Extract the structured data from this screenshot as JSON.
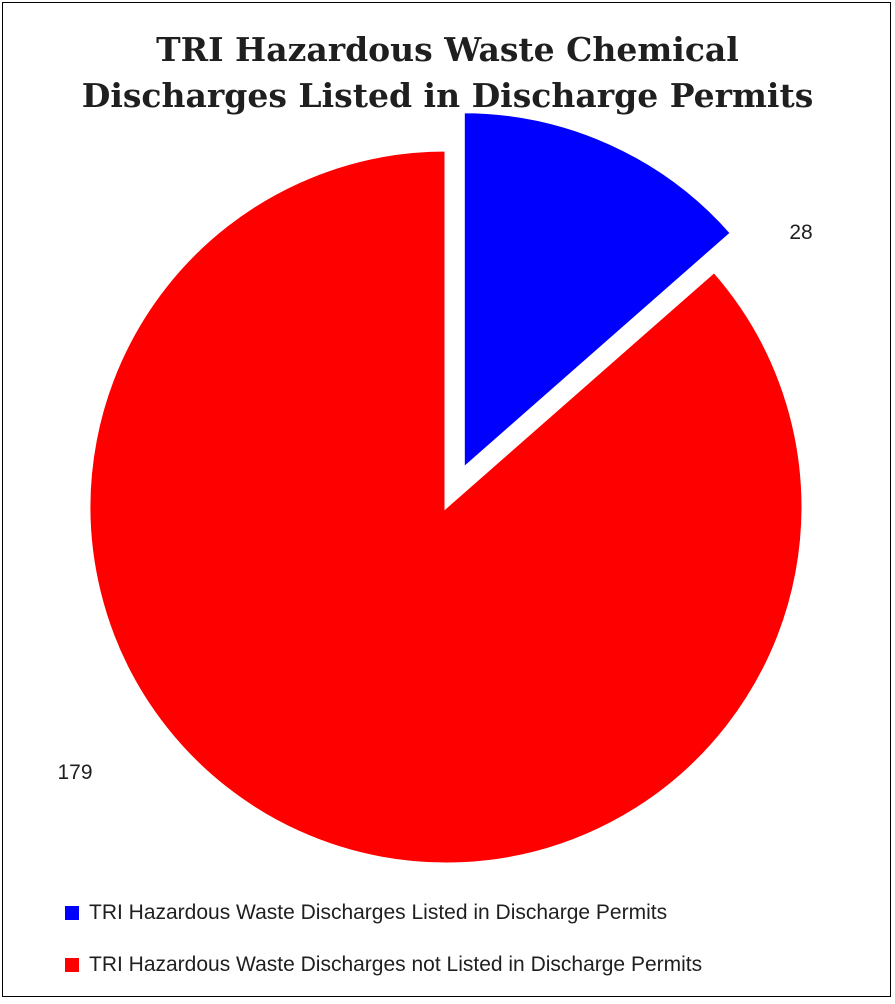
{
  "chart_data": {
    "type": "pie",
    "title": [
      "TRI Hazardous Waste Chemical",
      "Discharges Listed in Discharge Permits"
    ],
    "slices": [
      {
        "label": "TRI Hazardous Waste Discharges Listed in Discharge Permits",
        "value": 28,
        "value_label": "28",
        "color": "#0000ff",
        "exploded": true
      },
      {
        "label": "TRI Hazardous Waste Discharges not Listed in Discharge Permits",
        "value": 179,
        "value_label": "179",
        "color": "#ff0000",
        "exploded": false
      }
    ],
    "legend_position": "bottom",
    "start_angle_deg": 0,
    "direction": "clockwise"
  }
}
